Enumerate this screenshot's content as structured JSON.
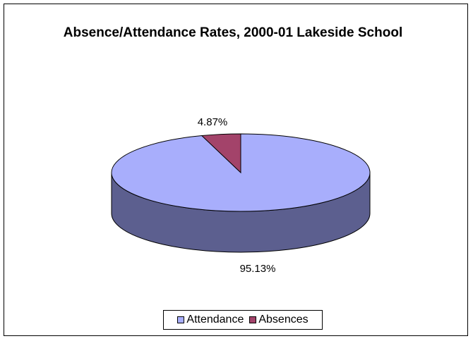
{
  "chart_data": {
    "type": "pie",
    "title": "Absence/Attendance Rates, 2000-01 Lakeside School",
    "slices": [
      {
        "label": "Attendance",
        "value": 95.13,
        "value_label": "95.13%",
        "color": "#a8aefc",
        "side_color": "#5c5f8f"
      },
      {
        "label": "Absences",
        "value": 4.87,
        "value_label": "4.87%",
        "color": "#a3436a",
        "side_color": "#5e2840"
      }
    ],
    "three_d": true,
    "legend_position": "bottom"
  }
}
